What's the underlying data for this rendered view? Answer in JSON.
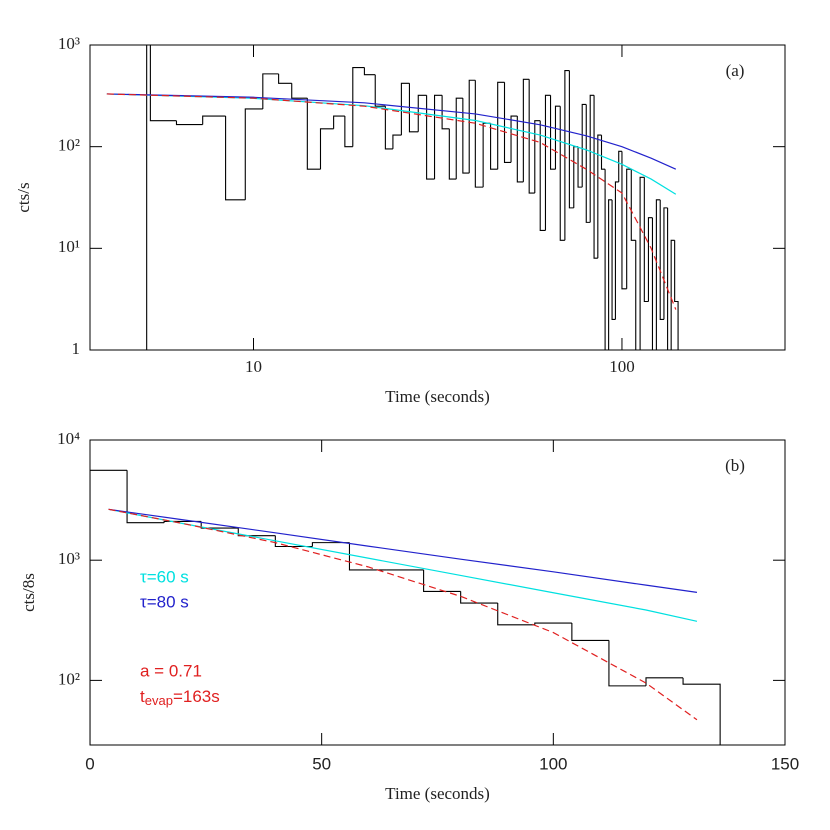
{
  "chart_data": [
    {
      "type": "histogram",
      "label": "(a)",
      "xlabel": "Time (seconds)",
      "ylabel": "cts/s",
      "xlog": true,
      "ylog": true,
      "xlim": [
        3.6,
        277
      ],
      "ylim": [
        1,
        1000
      ],
      "xticks": [
        10,
        100
      ],
      "yticks": [
        1,
        {
          "value": 10,
          "label": "10¹"
        },
        {
          "value": 100,
          "label": "10²"
        },
        {
          "value": 1000,
          "label": "10³"
        }
      ],
      "color": "#000000",
      "bins": [
        5.13,
        5.25,
        6.18,
        7.28,
        8.4,
        9.5,
        10.6,
        11.7,
        12.7,
        14,
        15.2,
        16.5,
        17.7,
        18.6,
        20,
        21.4,
        22.8,
        23.9,
        25.2,
        26.5,
        28,
        29.5,
        31,
        32.5,
        34,
        35.5,
        37,
        38.5,
        40,
        42,
        44,
        46,
        48,
        50,
        52,
        54,
        56,
        58,
        60,
        62,
        64,
        66,
        68,
        70,
        72,
        74,
        76,
        78,
        80,
        82,
        84,
        86,
        88,
        90,
        92,
        94,
        96,
        98,
        100,
        103,
        106,
        109,
        112,
        115,
        118,
        121,
        124,
        127,
        130,
        133,
        136,
        139,
        142
      ],
      "counts": [
        1200,
        180,
        165,
        200,
        30,
        235,
        520,
        420,
        300,
        60,
        150,
        200,
        100,
        600,
        510,
        250,
        95,
        130,
        420,
        140,
        320,
        48,
        320,
        150,
        48,
        300,
        55,
        450,
        40,
        170,
        60,
        430,
        70,
        200,
        45,
        460,
        35,
        180,
        15,
        320,
        60,
        250,
        12,
        560,
        25,
        100,
        40,
        260,
        18,
        320,
        8,
        130,
        60,
        0,
        30,
        2,
        45,
        90,
        4,
        60,
        12,
        0,
        50,
        3,
        20,
        0,
        30,
        2,
        25,
        0,
        12,
        3
      ],
      "series": [
        {
          "color": "#00e0e0",
          "x": [
            4,
            10,
            20,
            40,
            60,
            80,
            100,
            120,
            140
          ],
          "values": [
            330,
            299,
            253,
            181,
            130,
            93,
            67,
            48,
            34
          ]
        },
        {
          "color": "#2222cc",
          "x": [
            4,
            10,
            20,
            40,
            60,
            80,
            100,
            120,
            140
          ],
          "values": [
            330,
            306,
            270,
            210,
            164,
            128,
            100,
            77,
            60
          ]
        },
        {
          "color": "#e02020",
          "dashed": true,
          "x": [
            4,
            10,
            20,
            40,
            60,
            80,
            100,
            120,
            140
          ],
          "values": [
            330,
            300,
            250,
            170,
            110,
            60,
            35,
            10,
            2.5
          ]
        }
      ]
    },
    {
      "type": "histogram",
      "label": "(b)",
      "xlabel": "Time (seconds)",
      "ylabel": "cts/8s",
      "xlog": false,
      "ylog": true,
      "xlim": [
        0,
        150
      ],
      "ylim": [
        29,
        10000
      ],
      "xticks": [
        0,
        50,
        100,
        150
      ],
      "yticks": [
        {
          "value": 100,
          "label": "10²"
        },
        {
          "value": 1000,
          "label": "10³"
        },
        {
          "value": 10000,
          "label": "10⁴"
        }
      ],
      "color": "#000000",
      "bins": [
        0,
        8,
        16,
        24,
        32,
        40,
        48,
        56,
        64,
        72,
        80,
        88,
        96,
        104,
        112,
        120,
        128,
        136
      ],
      "counts": [
        5600,
        2050,
        2100,
        1850,
        1600,
        1300,
        1400,
        830,
        830,
        550,
        440,
        290,
        300,
        215,
        90,
        105,
        93
      ],
      "series": [
        {
          "name": "τ=60 s",
          "color": "#00e0e0",
          "x": [
            4,
            20,
            40,
            60,
            80,
            100,
            120,
            131
          ],
          "values": [
            2650,
            2020,
            1450,
            1040,
            747,
            536,
            385,
            310
          ]
        },
        {
          "name": "τ=80 s",
          "color": "#2222cc",
          "x": [
            4,
            20,
            40,
            60,
            80,
            100,
            120,
            131
          ],
          "values": [
            2650,
            2170,
            1690,
            1310,
            1020,
            800,
            620,
            540
          ]
        },
        {
          "color": "#e02020",
          "dashed": true,
          "x": [
            4,
            20,
            40,
            60,
            80,
            100,
            120,
            131
          ],
          "values": [
            2650,
            2020,
            1400,
            880,
            500,
            250,
            95,
            47
          ]
        }
      ],
      "annotations": [
        {
          "color": "#e02020",
          "text": "a = 0.71"
        },
        {
          "color": "#e02020",
          "parts": [
            "t",
            "evap",
            "=163s"
          ]
        }
      ]
    }
  ]
}
